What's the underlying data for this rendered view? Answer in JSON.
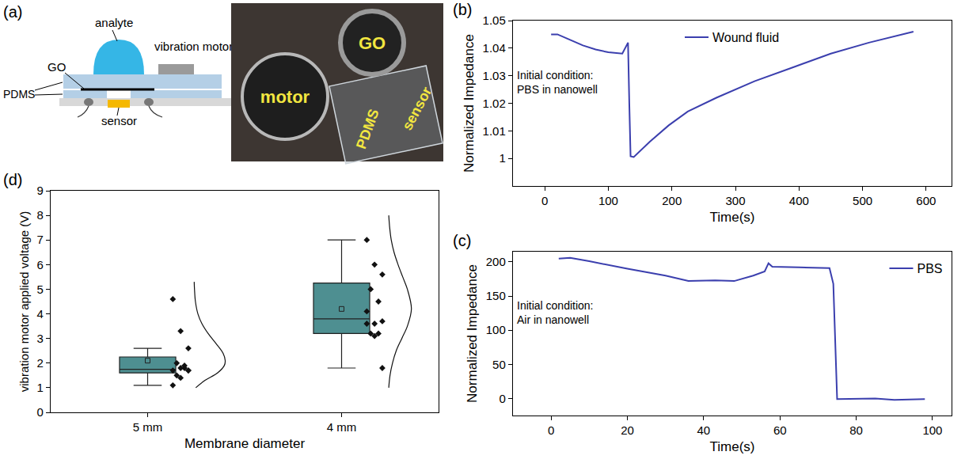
{
  "diagram": {
    "panel": "(a)",
    "schematic": {
      "analyte": "analyte",
      "motor": "vibration motor",
      "membrane": "GO",
      "layers": "PDMS",
      "sensor": "sensor"
    },
    "photo": {
      "membrane": "GO",
      "motor": "motor",
      "layers": "PDMS",
      "sensor": "sensor"
    }
  },
  "chart_data": [
    {
      "panel": "(b)",
      "type": "line",
      "x_label": "Time(s)",
      "y_label": "Normalized Impedance",
      "annotation": [
        "Initial condition:",
        "PBS in nanowell"
      ],
      "xlim": [
        -50,
        640
      ],
      "xticks": [
        0,
        100,
        200,
        300,
        400,
        500,
        600
      ],
      "ylim": [
        0.99,
        1.05
      ],
      "yticks": [
        1,
        1.01,
        1.02,
        1.03,
        1.04,
        1.05
      ],
      "grid": false,
      "legend": "top",
      "series": [
        {
          "name": "Wound fluid",
          "color": "#3b3fae",
          "x": [
            10,
            20,
            40,
            60,
            80,
            100,
            122,
            128,
            131,
            133,
            135,
            140,
            165,
            195,
            225,
            270,
            330,
            390,
            450,
            510,
            580
          ],
          "values": [
            1.045,
            1.045,
            1.043,
            1.041,
            1.0395,
            1.0385,
            1.038,
            1.041,
            1.042,
            1.02,
            1.0008,
            1.0005,
            1.006,
            1.012,
            1.017,
            1.022,
            1.028,
            1.033,
            1.038,
            1.042,
            1.046
          ]
        }
      ]
    },
    {
      "panel": "(c)",
      "type": "line",
      "x_label": "Time(s)",
      "y_label": "Normalized Impedance",
      "annotation": [
        "Initial condition:",
        "Air in nanowell"
      ],
      "xlim": [
        -10,
        105
      ],
      "xticks": [
        0,
        20,
        40,
        60,
        80,
        100
      ],
      "ylim": [
        -25,
        215
      ],
      "yticks": [
        0,
        50,
        100,
        150,
        200
      ],
      "grid": false,
      "legend": "top right",
      "series": [
        {
          "name": "PBS",
          "color": "#3b3fae",
          "x": [
            2,
            5,
            10,
            20,
            30,
            36,
            43,
            48,
            53,
            56,
            57,
            58,
            65,
            73,
            74,
            75,
            85,
            90,
            98
          ],
          "values": [
            205,
            206,
            201,
            190,
            180,
            172,
            173,
            172,
            180,
            186,
            198,
            193,
            192,
            191,
            168,
            -1,
            0,
            -2,
            -1
          ]
        }
      ]
    },
    {
      "panel": "(d)",
      "type": "box",
      "x_label": "Membrane diameter",
      "y_label": "vibration motor applied voltage (V)",
      "categories": [
        "5 mm",
        "4 mm"
      ],
      "ylim": [
        0,
        9
      ],
      "yticks": [
        0,
        1,
        2,
        3,
        4,
        5,
        6,
        7,
        8,
        9
      ],
      "grid": false,
      "color": "#4e8f91",
      "boxes": [
        {
          "q1": 1.6,
          "median": 1.75,
          "q3": 2.25,
          "lower": 1.1,
          "upper": 2.6,
          "mean": 2.1,
          "points": [
            4.6,
            3.3,
            2.6,
            2.0,
            1.8,
            1.7,
            1.8,
            1.7,
            1.5,
            1.9,
            1.1,
            1.4,
            1.7
          ],
          "curve": {
            "y": [
              1.0,
              1.3,
              1.6,
              1.9,
              2.1,
              2.4,
              2.8,
              3.2,
              3.6,
              4.0,
              4.5,
              5.0,
              5.3
            ],
            "density": [
              0.05,
              0.35,
              0.75,
              0.97,
              1.0,
              0.93,
              0.7,
              0.45,
              0.25,
              0.12,
              0.04,
              0.01,
              0
            ]
          }
        },
        {
          "q1": 3.2,
          "median": 3.8,
          "q3": 5.25,
          "lower": 1.8,
          "upper": 7.0,
          "mean": 4.2,
          "points": [
            7.0,
            6.0,
            5.6,
            5.0,
            4.5,
            4.1,
            3.6,
            3.7,
            3.2,
            3.2,
            3.6,
            3.1,
            1.8
          ],
          "curve": {
            "y": [
              1.0,
              1.5,
              2.0,
              2.5,
              3.0,
              3.5,
              4.2,
              5.0,
              5.5,
              6.0,
              6.5,
              7.0,
              7.5,
              8.0
            ],
            "density": [
              0.02,
              0.06,
              0.14,
              0.26,
              0.44,
              0.62,
              0.75,
              0.62,
              0.47,
              0.32,
              0.19,
              0.1,
              0.05,
              0.02
            ]
          }
        }
      ]
    }
  ]
}
